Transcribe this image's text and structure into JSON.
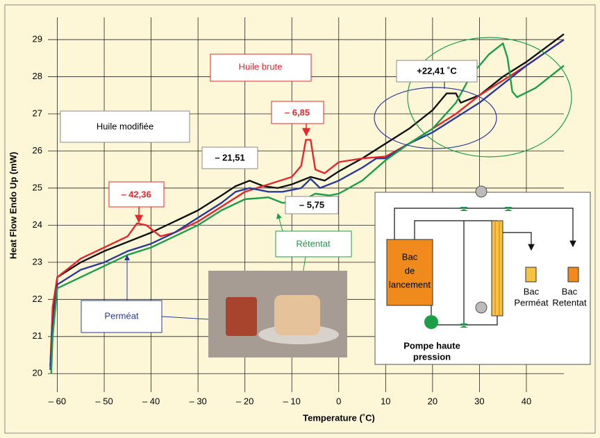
{
  "chart_data": {
    "type": "line",
    "x_label": "Temperature (˚C)",
    "y_label": "Heat Flow Endo Up (mW)",
    "xlim": [
      -62,
      48
    ],
    "ylim": [
      19.5,
      29.6
    ],
    "xticks": [
      {
        "value": -60,
        "label": "– 60"
      },
      {
        "value": -50,
        "label": "– 50"
      },
      {
        "value": -40,
        "label": "– 40"
      },
      {
        "value": -30,
        "label": "– 30"
      },
      {
        "value": -20,
        "label": "– 20"
      },
      {
        "value": -10,
        "label": "– 10"
      },
      0,
      10,
      20,
      30,
      40
    ],
    "yticks": [
      20,
      21,
      22,
      23,
      24,
      25,
      26,
      27,
      28,
      29
    ],
    "grid": true,
    "series": [
      {
        "name": "Huile modifiée",
        "color": "#111111",
        "x": [
          -61.5,
          -61,
          -60,
          -55,
          -50,
          -45,
          -40,
          -35,
          -30,
          -25,
          -22,
          -19,
          -16,
          -13,
          -10,
          -6,
          -3,
          0,
          5,
          10,
          15,
          20,
          23,
          25,
          26,
          30,
          35,
          40,
          48
        ],
        "values": [
          20.2,
          21.5,
          22.6,
          23.0,
          23.3,
          23.55,
          23.8,
          24.1,
          24.4,
          24.8,
          25.05,
          25.2,
          25.05,
          25.0,
          25.1,
          25.3,
          25.2,
          25.45,
          25.8,
          26.2,
          26.6,
          27.1,
          27.55,
          27.55,
          27.3,
          27.5,
          28.0,
          28.4,
          29.15
        ]
      },
      {
        "name": "Huile brute",
        "color": "#e8262b",
        "x": [
          -61.5,
          -61,
          -60,
          -55,
          -50,
          -45,
          -43,
          -41,
          -38,
          -35,
          -30,
          -25,
          -20,
          -15,
          -10,
          -8,
          -7,
          -6,
          -5,
          -3,
          0,
          5,
          10,
          15,
          20,
          25,
          30,
          35,
          40,
          48
        ],
        "values": [
          20.2,
          21.8,
          22.6,
          23.1,
          23.4,
          23.7,
          24.05,
          24.0,
          23.7,
          23.8,
          24.1,
          24.5,
          24.9,
          25.1,
          25.3,
          25.6,
          26.3,
          26.3,
          25.5,
          25.4,
          25.7,
          25.8,
          25.85,
          26.2,
          26.6,
          27.0,
          27.5,
          27.9,
          28.3,
          29.0
        ]
      },
      {
        "name": "Perméat",
        "color": "#2a3a9c",
        "x": [
          -61.5,
          -61,
          -60,
          -55,
          -50,
          -45,
          -40,
          -35,
          -30,
          -25,
          -22,
          -19,
          -15,
          -12,
          -8,
          -6,
          -4,
          0,
          5,
          8,
          10,
          15,
          20,
          25,
          30,
          35,
          40,
          48
        ],
        "values": [
          20.1,
          21.3,
          22.4,
          22.8,
          23.0,
          23.3,
          23.5,
          23.8,
          24.2,
          24.6,
          24.9,
          25.0,
          24.9,
          24.9,
          25.0,
          25.25,
          25.0,
          25.2,
          25.55,
          25.8,
          25.8,
          26.2,
          26.5,
          26.9,
          27.3,
          27.8,
          28.3,
          29.0
        ]
      },
      {
        "name": "Rétentat",
        "color": "#1a9e48",
        "x": [
          -61.3,
          -61,
          -60,
          -55,
          -50,
          -45,
          -40,
          -35,
          -30,
          -25,
          -20,
          -15,
          -12,
          -8,
          -5,
          -2,
          0,
          5,
          10,
          15,
          20,
          25,
          28,
          32,
          35,
          36,
          37,
          38,
          42,
          48
        ],
        "values": [
          20.0,
          21.0,
          22.3,
          22.6,
          22.9,
          23.2,
          23.4,
          23.7,
          24.0,
          24.4,
          24.7,
          24.75,
          24.6,
          24.65,
          24.85,
          24.8,
          24.85,
          25.2,
          25.75,
          26.2,
          26.6,
          27.3,
          28.0,
          28.6,
          28.9,
          28.5,
          27.6,
          27.45,
          27.7,
          28.3
        ]
      }
    ],
    "annotations": [
      "– 42,36",
      "– 6,85",
      "– 21,51",
      "– 5,75",
      "+22,41 ˚C"
    ]
  },
  "diagram": {
    "tank": [
      "Bac",
      "de",
      "lancement"
    ],
    "permeate": [
      "Bac",
      "Perméat"
    ],
    "retentate": [
      "Bac",
      "Retentat"
    ],
    "pump": [
      "Pompe haute",
      "pression"
    ]
  }
}
